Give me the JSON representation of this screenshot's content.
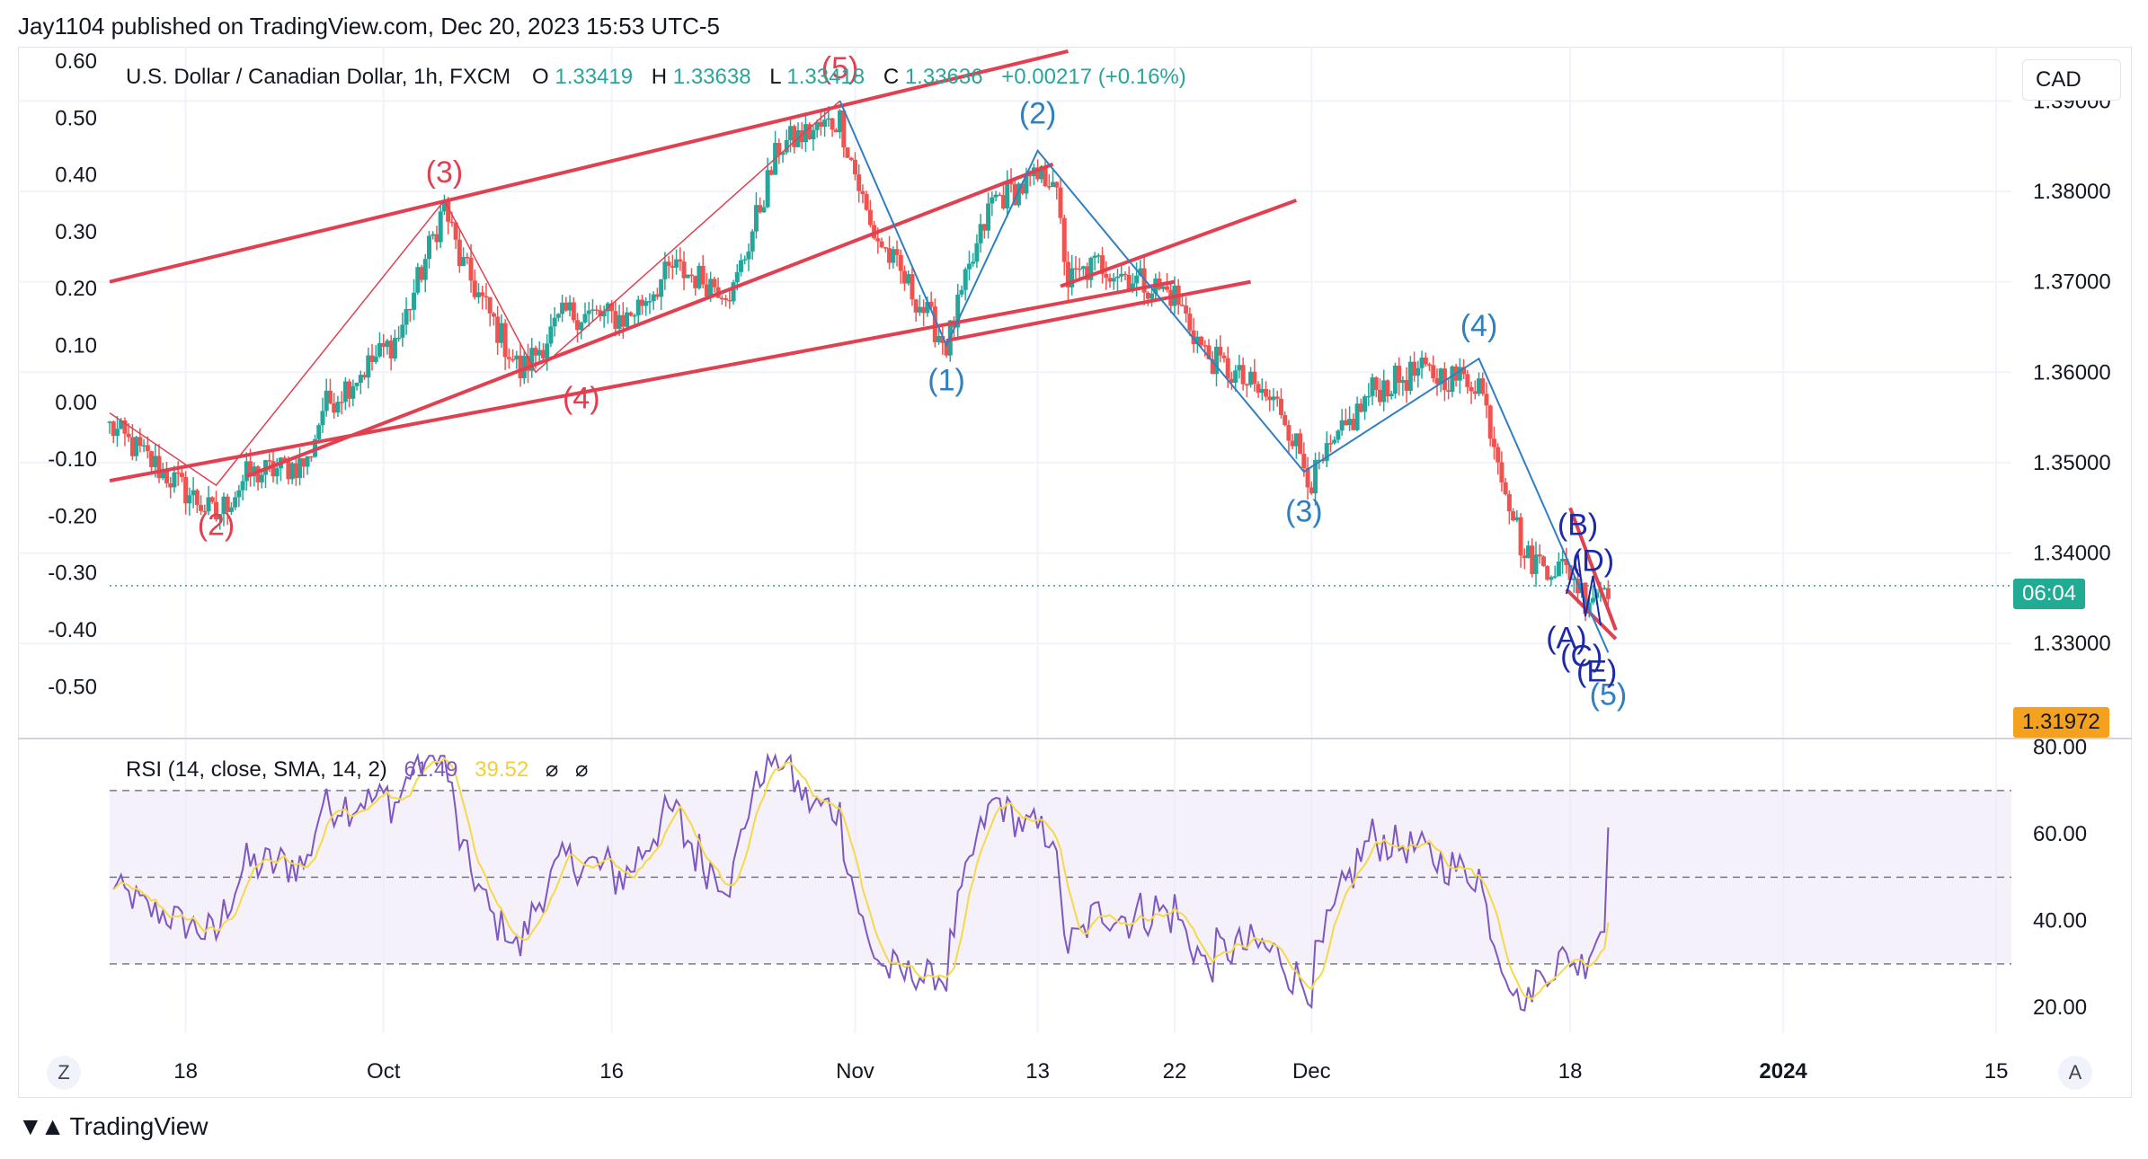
{
  "header": {
    "published": "Jay1104 published on TradingView.com, Dec 20, 2023 15:53 UTC-5"
  },
  "legend": {
    "symbol": "U.S. Dollar / Canadian Dollar, 1h, FXCM",
    "o_label": "O",
    "o_value": "1.33419",
    "h_label": "H",
    "h_value": "1.33638",
    "l_label": "L",
    "l_value": "1.33418",
    "c_label": "C",
    "c_value": "1.33636",
    "change": "+0.00217 (+0.16%)"
  },
  "currency": "CAD",
  "countdown": "06:04",
  "price_marker": "1.31972",
  "rsi_legend": {
    "label": "RSI (14, close, SMA, 14, 2)",
    "rsi": "61.49",
    "sma": "39.52",
    "x1": "⌀",
    "x2": "⌀"
  },
  "footer": {
    "brand": "TradingView"
  },
  "buttons": {
    "left": "Z",
    "right": "A"
  },
  "colors": {
    "up": "#26a69a",
    "down": "#ef5350",
    "red_wave": "#e0404f",
    "blue_wave": "#2f7fc1",
    "navy_wave": "#1c2aa8",
    "rsi": "#7e57c2",
    "rsi_sma": "#f7d84a",
    "countdown_bg": "#22ab94",
    "marker_bg": "#f4a11f"
  },
  "chart_data": {
    "type": "candlestick",
    "timeframe": "1h",
    "x_ticks": [
      "18",
      "Oct",
      "16",
      "Nov",
      "13",
      "22",
      "Dec",
      "18",
      "2024",
      "15"
    ],
    "left_axis_ticks": [
      "0.60",
      "0.50",
      "0.40",
      "0.30",
      "0.20",
      "0.10",
      "0.00",
      "-0.10",
      "-0.20",
      "-0.30",
      "-0.40",
      "-0.50"
    ],
    "right_axis_ticks": [
      "1.38000",
      "1.37000",
      "1.36000",
      "1.35000",
      "1.34000",
      "1.33000"
    ],
    "right_axis_partial_tick": "1.39000",
    "price_anchors": [
      {
        "date": "2023-09-13",
        "price": 1.354
      },
      {
        "date": "2023-09-20",
        "price": 1.344
      },
      {
        "date": "2023-09-22",
        "price": 1.3485
      },
      {
        "date": "2023-09-26",
        "price": 1.35
      },
      {
        "date": "2023-09-27",
        "price": 1.356
      },
      {
        "date": "2023-10-02",
        "price": 1.364
      },
      {
        "date": "2023-10-05",
        "price": 1.3785
      },
      {
        "date": "2023-10-06",
        "price": 1.3725
      },
      {
        "date": "2023-10-10",
        "price": 1.36
      },
      {
        "date": "2023-10-13",
        "price": 1.3665
      },
      {
        "date": "2023-10-17",
        "price": 1.366
      },
      {
        "date": "2023-10-20",
        "price": 1.3715
      },
      {
        "date": "2023-10-24",
        "price": 1.369
      },
      {
        "date": "2023-10-27",
        "price": 1.385
      },
      {
        "date": "2023-10-31",
        "price": 1.388
      },
      {
        "date": "2023-11-02",
        "price": 1.376
      },
      {
        "date": "2023-11-07",
        "price": 1.363
      },
      {
        "date": "2023-11-10",
        "price": 1.379
      },
      {
        "date": "2023-11-14",
        "price": 1.382
      },
      {
        "date": "2023-11-15",
        "price": 1.37
      },
      {
        "date": "2023-11-17",
        "price": 1.372
      },
      {
        "date": "2023-11-22",
        "price": 1.3685
      },
      {
        "date": "2023-11-24",
        "price": 1.362
      },
      {
        "date": "2023-11-29",
        "price": 1.356
      },
      {
        "date": "2023-12-01",
        "price": 1.348
      },
      {
        "date": "2023-12-05",
        "price": 1.358
      },
      {
        "date": "2023-12-08",
        "price": 1.36
      },
      {
        "date": "2023-12-12",
        "price": 1.359
      },
      {
        "date": "2023-12-14",
        "price": 1.346
      },
      {
        "date": "2023-12-15",
        "price": 1.3395
      },
      {
        "date": "2023-12-18",
        "price": 1.338
      },
      {
        "date": "2023-12-19",
        "price": 1.335
      },
      {
        "date": "2023-12-20",
        "price": 1.3364
      }
    ],
    "current_price_line": 1.3364,
    "elliott_waves": {
      "red": [
        "(2)",
        "(3)",
        "(4)",
        "(5)"
      ],
      "blue": [
        "(1)",
        "(2)",
        "(3)",
        "(4)",
        "(5)"
      ],
      "navy": [
        "(A)",
        "(B)",
        "(C)",
        "(D)",
        "(E)"
      ]
    },
    "rsi": {
      "ticks": [
        "80.00",
        "60.00",
        "40.00",
        "20.00"
      ],
      "upper_band": 70,
      "middle_band": 50,
      "lower_band": 30,
      "last_rsi": 61.49,
      "last_sma": 39.52
    }
  }
}
